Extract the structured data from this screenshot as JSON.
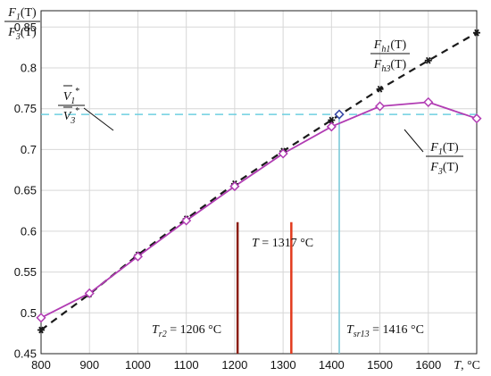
{
  "chart_data": {
    "type": "line",
    "x_unit_label": "T, °C",
    "y_label": {
      "numerator": "F1(T)",
      "denominator": "F3(T)"
    },
    "xlim": [
      800,
      1700
    ],
    "ylim": [
      0.45,
      0.87
    ],
    "xticks": [
      800,
      900,
      1000,
      1100,
      1200,
      1300,
      1400,
      1500,
      1600,
      1700
    ],
    "yticks": [
      0.45,
      0.5,
      0.55,
      0.6,
      0.65,
      0.7,
      0.75,
      0.8,
      0.85
    ],
    "grid": true,
    "series": [
      {
        "name": "Fh1(T)/Fh3(T)",
        "color": "#1a1a1a",
        "style": "dashed",
        "marker": "asterisk",
        "points": [
          [
            800,
            0.479
          ],
          [
            900,
            0.523
          ],
          [
            1000,
            0.571
          ],
          [
            1100,
            0.615
          ],
          [
            1200,
            0.658
          ],
          [
            1300,
            0.698
          ],
          [
            1400,
            0.736
          ],
          [
            1500,
            0.774
          ],
          [
            1600,
            0.809
          ],
          [
            1700,
            0.843
          ]
        ]
      },
      {
        "name": "F1(T)/F3(T)",
        "color": "#b13cb3",
        "style": "solid",
        "marker": "diamond",
        "points": [
          [
            800,
            0.494
          ],
          [
            900,
            0.524
          ],
          [
            1000,
            0.569
          ],
          [
            1100,
            0.613
          ],
          [
            1200,
            0.655
          ],
          [
            1300,
            0.695
          ],
          [
            1400,
            0.728
          ],
          [
            1500,
            0.753
          ],
          [
            1600,
            0.758
          ],
          [
            1700,
            0.738
          ]
        ]
      }
    ],
    "reference_line": {
      "name": "V1*/V3*",
      "y": 0.743,
      "color": "#6ecfe0"
    },
    "intersection": {
      "x": 1416,
      "y": 0.743,
      "color": "#3a4aa8"
    },
    "vertical_markers": [
      {
        "x": 1206,
        "y_top": 0.611,
        "color": "#8b1e12",
        "label": "Tr2 = 1206 °C"
      },
      {
        "x": 1317,
        "y_top": 0.611,
        "color": "#e23a1d",
        "label": "T = 1317 °C"
      },
      {
        "x": 1416,
        "y_top": 0.743,
        "color": "#7cc9d8",
        "label": "Tsr13 = 1416 °C"
      }
    ],
    "annotations": {
      "fh_label": {
        "num_main": "F",
        "num_sub": "h1",
        "num_arg": "(T)",
        "den_main": "F",
        "den_sub": "h3",
        "den_arg": "(T)"
      },
      "f_label": {
        "num_main": "F",
        "num_sub": "1",
        "num_arg": "(T)",
        "den_main": "F",
        "den_sub": "3",
        "den_arg": "(T)"
      },
      "v_label": {
        "num_main": "V",
        "num_sub": "1",
        "num_sup": "*",
        "den_main": "V",
        "den_sub": "3",
        "den_sup": "*"
      },
      "y_axis_label": {
        "num_main": "F",
        "num_sub": "1",
        "num_arg": "(T)",
        "den_main": "F",
        "den_sub": "3",
        "den_arg": "(T)"
      },
      "tr2": {
        "main": "T",
        "sub": "r2",
        "rest": " = 1206 °C"
      },
      "t1317": {
        "main": "T",
        "rest": " = 1317 °C"
      },
      "tsr13": {
        "main": "T",
        "sub": "sr13",
        "rest": " = 1416 °C"
      },
      "x_unit": {
        "main": "T",
        "rest": ", °C"
      }
    }
  }
}
